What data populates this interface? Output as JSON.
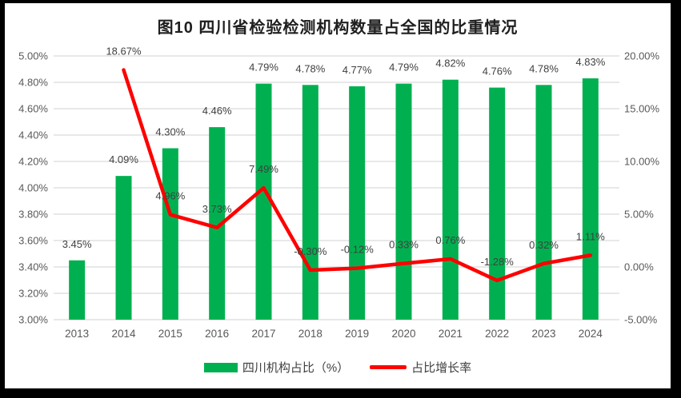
{
  "title": "图10  四川省检验检测机构数量占全国的比重情况",
  "legend": [
    {
      "label": "四川机构占比（%）",
      "color": "#00B050",
      "type": "bar"
    },
    {
      "label": "占比增长率",
      "color": "#FF0000",
      "type": "line"
    }
  ],
  "colors": {
    "bar": "#00B050",
    "line": "#FF0000",
    "grid": "#D9D9D9",
    "axis_text": "#595959",
    "data_label_text": "#404040",
    "title_text": "#1F1F1F",
    "background": "#FFFFFF",
    "frame_border": "#000000"
  },
  "chart_data": {
    "type": "bar",
    "subtype": "bar+line combo, dual axis",
    "title": "图10  四川省检验检测机构数量占全国的比重情况",
    "categories": [
      "2013",
      "2014",
      "2015",
      "2016",
      "2017",
      "2018",
      "2019",
      "2020",
      "2021",
      "2022",
      "2023",
      "2024"
    ],
    "series": [
      {
        "name": "四川机构占比（%）",
        "type": "bar",
        "axis": "left",
        "color": "#00B050",
        "values": [
          3.45,
          4.09,
          4.3,
          4.46,
          4.79,
          4.78,
          4.77,
          4.79,
          4.82,
          4.76,
          4.78,
          4.83
        ],
        "labels": [
          "3.45%",
          "4.09%",
          "4.30%",
          "4.46%",
          "4.79%",
          "4.78%",
          "4.77%",
          "4.79%",
          "4.82%",
          "4.76%",
          "4.78%",
          "4.83%"
        ]
      },
      {
        "name": "占比增长率",
        "type": "line",
        "axis": "right",
        "color": "#FF0000",
        "values": [
          null,
          18.67,
          4.96,
          3.73,
          7.49,
          -0.3,
          -0.12,
          0.33,
          0.76,
          -1.28,
          0.32,
          1.11
        ],
        "labels": [
          null,
          "18.67%",
          "4.96%",
          "3.73%",
          "7.49%",
          "-0.30%",
          "-0.12%",
          "0.33%",
          "0.76%",
          "-1.28%",
          "0.32%",
          "1.11%"
        ]
      }
    ],
    "left_axis": {
      "min": 3.0,
      "max": 5.0,
      "step": 0.2,
      "tick_labels": [
        "5.00%",
        "4.80%",
        "4.60%",
        "4.40%",
        "4.20%",
        "4.00%",
        "3.80%",
        "3.60%",
        "3.40%",
        "3.20%",
        "3.00%"
      ]
    },
    "right_axis": {
      "min": -5.0,
      "max": 20.0,
      "step": 5.0,
      "minor_step": 2.5,
      "tick_labels": [
        "20.00%",
        "15.00%",
        "10.00%",
        "5.00%",
        "0.00%",
        "-5.00%"
      ]
    },
    "grid": true,
    "legend_position": "bottom",
    "xlabel": "",
    "ylabel_left": "",
    "ylabel_right": ""
  }
}
